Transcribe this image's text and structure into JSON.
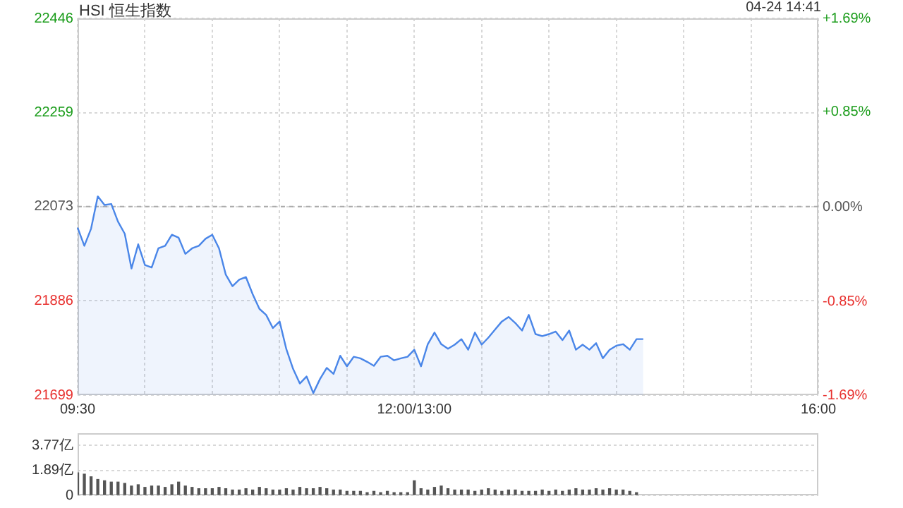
{
  "chart_data": [
    {
      "type": "area",
      "title": "HSI 恒生指数",
      "annotations": [
        "04-24 14:41"
      ],
      "color": "#4a86e8",
      "grid": true,
      "categories": [
        "09:30",
        null,
        null,
        null,
        null,
        null,
        null,
        null,
        null,
        null,
        null,
        null,
        null,
        null,
        null,
        null,
        null,
        null,
        null,
        null,
        null,
        null,
        null,
        null,
        null,
        null,
        null,
        null,
        null,
        null,
        null,
        null,
        null,
        null,
        null,
        null,
        null,
        null,
        null,
        null,
        null,
        null,
        null,
        null,
        null,
        null,
        null,
        null,
        null,
        null,
        "12:00/13:00",
        null,
        null,
        null,
        null,
        null,
        null,
        null,
        null,
        null,
        null,
        null,
        null,
        null,
        null,
        null,
        null,
        null,
        null,
        null,
        null,
        null,
        null,
        null,
        null,
        null,
        null,
        null,
        null,
        null,
        null,
        null,
        null,
        null,
        null,
        null,
        null,
        null,
        null,
        null,
        null,
        null,
        null,
        null,
        null,
        null,
        null,
        null,
        null,
        null,
        null,
        null,
        null,
        null,
        null,
        null,
        null,
        null,
        null,
        null,
        "16:00"
      ],
      "values": [
        22031,
        21995,
        22029,
        22093,
        22076,
        22078,
        22043,
        22019,
        21950,
        21998,
        21957,
        21952,
        21990,
        21995,
        22017,
        22011,
        21979,
        21990,
        21995,
        22009,
        22017,
        21990,
        21938,
        21915,
        21928,
        21933,
        21899,
        21870,
        21858,
        21832,
        21845,
        21790,
        21751,
        21722,
        21736,
        21703,
        21731,
        21753,
        21741,
        21777,
        21756,
        21775,
        21772,
        21765,
        21757,
        21775,
        21777,
        21768,
        21772,
        21775,
        21789,
        21756,
        21800,
        21823,
        21800,
        21791,
        21799,
        21810,
        21789,
        21823,
        21799,
        21813,
        21829,
        21845,
        21854,
        21842,
        21827,
        21858,
        21820,
        21816,
        21820,
        21825,
        21808,
        21827,
        21789,
        21799,
        21789,
        21802,
        21772,
        21789,
        21797,
        21800,
        21789,
        21810,
        21810,
        null,
        null,
        null,
        null,
        null,
        null,
        null,
        null,
        null,
        null,
        null,
        null,
        null,
        null,
        null,
        null,
        null,
        null,
        null,
        null,
        null,
        null,
        null,
        null,
        null,
        null
      ],
      "ylim": [
        21699,
        22446
      ],
      "yticks": [
        21699,
        21886,
        22073,
        22259,
        22446
      ],
      "y2lim": [
        -1.69,
        1.69
      ],
      "y2ticks": [
        {
          "value": -1.69,
          "label": "-1.69%"
        },
        {
          "value": -0.85,
          "label": "-0.85%"
        },
        {
          "value": 0,
          "label": "0.00%"
        },
        {
          "value": 0.85,
          "label": "+0.85%"
        },
        {
          "value": 1.69,
          "label": "+1.69%"
        }
      ],
      "ref_lines": [
        {
          "axis": "y",
          "value": 22073,
          "color": "#aaaaaa",
          "line_style": "dashed"
        }
      ]
    },
    {
      "type": "bar",
      "color": "#555555",
      "grid": "y",
      "tick_labels": "y",
      "categories": [
        null,
        null,
        null,
        null,
        null,
        null,
        null,
        null,
        null,
        null,
        null,
        null,
        null,
        null,
        null,
        null,
        null,
        null,
        null,
        null,
        null,
        null,
        null,
        null,
        null,
        null,
        null,
        null,
        null,
        null,
        null,
        null,
        null,
        null,
        null,
        null,
        null,
        null,
        null,
        null,
        null,
        null,
        null,
        null,
        null,
        null,
        null,
        null,
        null,
        null,
        null,
        null,
        null,
        null,
        null,
        null,
        null,
        null,
        null,
        null,
        null,
        null,
        null,
        null,
        null,
        null,
        null,
        null,
        null,
        null,
        null,
        null,
        null,
        null,
        null,
        null,
        null,
        null,
        null,
        null,
        null,
        null,
        null,
        null,
        null,
        null,
        null,
        null,
        null,
        null,
        null,
        null,
        null,
        null,
        null,
        null,
        null,
        null,
        null,
        null,
        null,
        null,
        null,
        null,
        null,
        null,
        null,
        null,
        null,
        null,
        null
      ],
      "values": [
        1.7,
        1.6,
        1.4,
        1.2,
        1.1,
        1.0,
        1.0,
        0.9,
        0.7,
        0.8,
        0.6,
        0.7,
        0.7,
        0.6,
        0.8,
        1.0,
        0.7,
        0.6,
        0.5,
        0.5,
        0.5,
        0.6,
        0.5,
        0.4,
        0.4,
        0.5,
        0.4,
        0.6,
        0.5,
        0.4,
        0.4,
        0.5,
        0.4,
        0.6,
        0.5,
        0.5,
        0.6,
        0.5,
        0.4,
        0.4,
        0.3,
        0.3,
        0.3,
        0.2,
        0.3,
        0.2,
        0.3,
        0.2,
        0.2,
        0.2,
        1.1,
        0.5,
        0.4,
        0.6,
        0.7,
        0.5,
        0.4,
        0.4,
        0.4,
        0.3,
        0.4,
        0.5,
        0.4,
        0.3,
        0.4,
        0.4,
        0.3,
        0.3,
        0.3,
        0.4,
        0.3,
        0.4,
        0.3,
        0.4,
        0.5,
        0.4,
        0.4,
        0.5,
        0.4,
        0.5,
        0.4,
        0.4,
        0.3,
        0.2,
        null,
        null,
        null,
        null,
        null,
        null,
        null,
        null,
        null,
        null,
        null,
        null,
        null,
        null,
        null,
        null,
        null,
        null,
        null,
        null,
        null,
        null,
        null,
        null,
        null,
        null,
        null
      ],
      "ylim": [
        0,
        4.7
      ],
      "yticks": [
        0,
        {
          "value": 1.89,
          "label": "1.89亿"
        },
        {
          "value": 3.77,
          "label": "3.77亿"
        }
      ]
    }
  ]
}
